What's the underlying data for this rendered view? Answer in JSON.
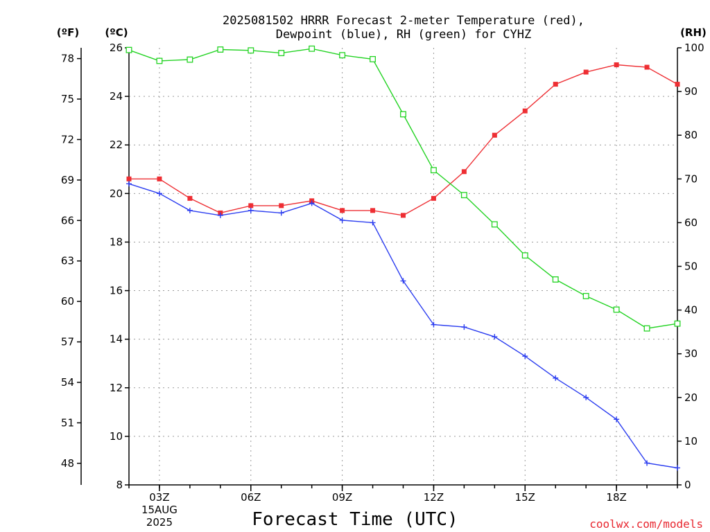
{
  "chart_data": {
    "type": "line",
    "title_line1": "2025081502 HRRR Forecast 2-meter Temperature (red),",
    "title_line2": "Dewpoint (blue), RH (green) for CYHZ",
    "xlabel": "Forecast Time (UTC)",
    "credit": "coolwx.com/models",
    "unit_labels": {
      "fahrenheit": "(ºF)",
      "celsius": "(ºC)",
      "rh": "(RH)"
    },
    "x": [
      2,
      3,
      4,
      5,
      6,
      7,
      8,
      9,
      10,
      11,
      12,
      13,
      14,
      15,
      16,
      17,
      18,
      19,
      20
    ],
    "xlim": [
      2,
      20
    ],
    "x_ticks": [
      {
        "x": 3,
        "label": "03Z",
        "sub1": "15AUG",
        "sub2": "2025"
      },
      {
        "x": 6,
        "label": "06Z"
      },
      {
        "x": 9,
        "label": "09Z"
      },
      {
        "x": 12,
        "label": "12Z"
      },
      {
        "x": 15,
        "label": "15Z"
      },
      {
        "x": 18,
        "label": "18Z"
      }
    ],
    "ylim_c": [
      8,
      26
    ],
    "y_ticks_c": [
      "8",
      "10",
      "12",
      "14",
      "16",
      "18",
      "20",
      "22",
      "24",
      "26"
    ],
    "y_ticks_f": [
      "48",
      "51",
      "54",
      "57",
      "60",
      "63",
      "66",
      "69",
      "72",
      "75",
      "78"
    ],
    "ylim_rh": [
      0,
      100
    ],
    "y_ticks_rh": [
      "0",
      "10",
      "20",
      "30",
      "40",
      "50",
      "60",
      "70",
      "80",
      "90",
      "100"
    ],
    "series": [
      {
        "key": "temperature",
        "color": "#ee2e33",
        "marker": "filled-square",
        "axis": "c",
        "values": [
          20.6,
          20.6,
          19.8,
          19.2,
          19.5,
          19.5,
          19.7,
          19.3,
          19.3,
          19.1,
          19.8,
          20.9,
          22.4,
          23.4,
          24.5,
          25.0,
          25.3,
          25.2,
          24.5
        ]
      },
      {
        "key": "dewpoint",
        "color": "#2b3df0",
        "marker": "plus",
        "axis": "c",
        "values": [
          20.4,
          20.0,
          19.3,
          19.1,
          19.3,
          19.2,
          19.6,
          18.9,
          18.8,
          16.4,
          14.6,
          14.5,
          14.1,
          13.3,
          12.4,
          11.6,
          10.7,
          8.9,
          8.7
        ]
      },
      {
        "key": "rh",
        "color": "#22d322",
        "marker": "open-square",
        "axis": "rh",
        "values": [
          99.5,
          97.0,
          97.3,
          99.6,
          99.4,
          98.8,
          99.8,
          98.3,
          97.4,
          84.8,
          72.0,
          66.3,
          59.6,
          52.5,
          47.0,
          43.2,
          40.1,
          35.8,
          36.9
        ]
      }
    ]
  }
}
